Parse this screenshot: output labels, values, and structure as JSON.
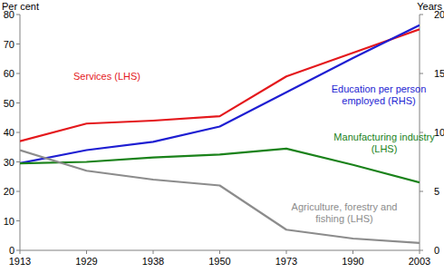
{
  "chart_data": {
    "type": "line",
    "y_label": "Per cent",
    "y2_label": "Years",
    "categories": [
      "1913",
      "1929",
      "1938",
      "1950",
      "1973",
      "1990",
      "2003"
    ],
    "ylim": [
      0,
      80
    ],
    "yticks": [
      0,
      10,
      20,
      30,
      40,
      50,
      60,
      70,
      80
    ],
    "y2lim": [
      0,
      20
    ],
    "y2ticks": [
      0,
      5,
      10,
      15,
      20
    ],
    "grid": false,
    "series": [
      {
        "name": "Services (LHS)",
        "color": "#e4181c",
        "values": [
          37,
          43,
          44,
          45.5,
          59,
          67,
          75
        ]
      },
      {
        "name": "Education per person employed (RHS)",
        "color": "#1e1ed2",
        "axis": "y2",
        "values": [
          7.4,
          8.5,
          9.2,
          10.5,
          13.4,
          16.3,
          19.1
        ]
      },
      {
        "name": "Manufacturing industry (LHS)",
        "color": "#1a821a",
        "values": [
          29.5,
          30,
          31.5,
          32.5,
          34.5,
          29,
          23
        ]
      },
      {
        "name": "Agriculture, forestry and fishing (LHS)",
        "color": "#8c8c8c",
        "values": [
          34,
          27,
          24,
          22,
          7,
          4,
          2.5
        ]
      }
    ]
  }
}
